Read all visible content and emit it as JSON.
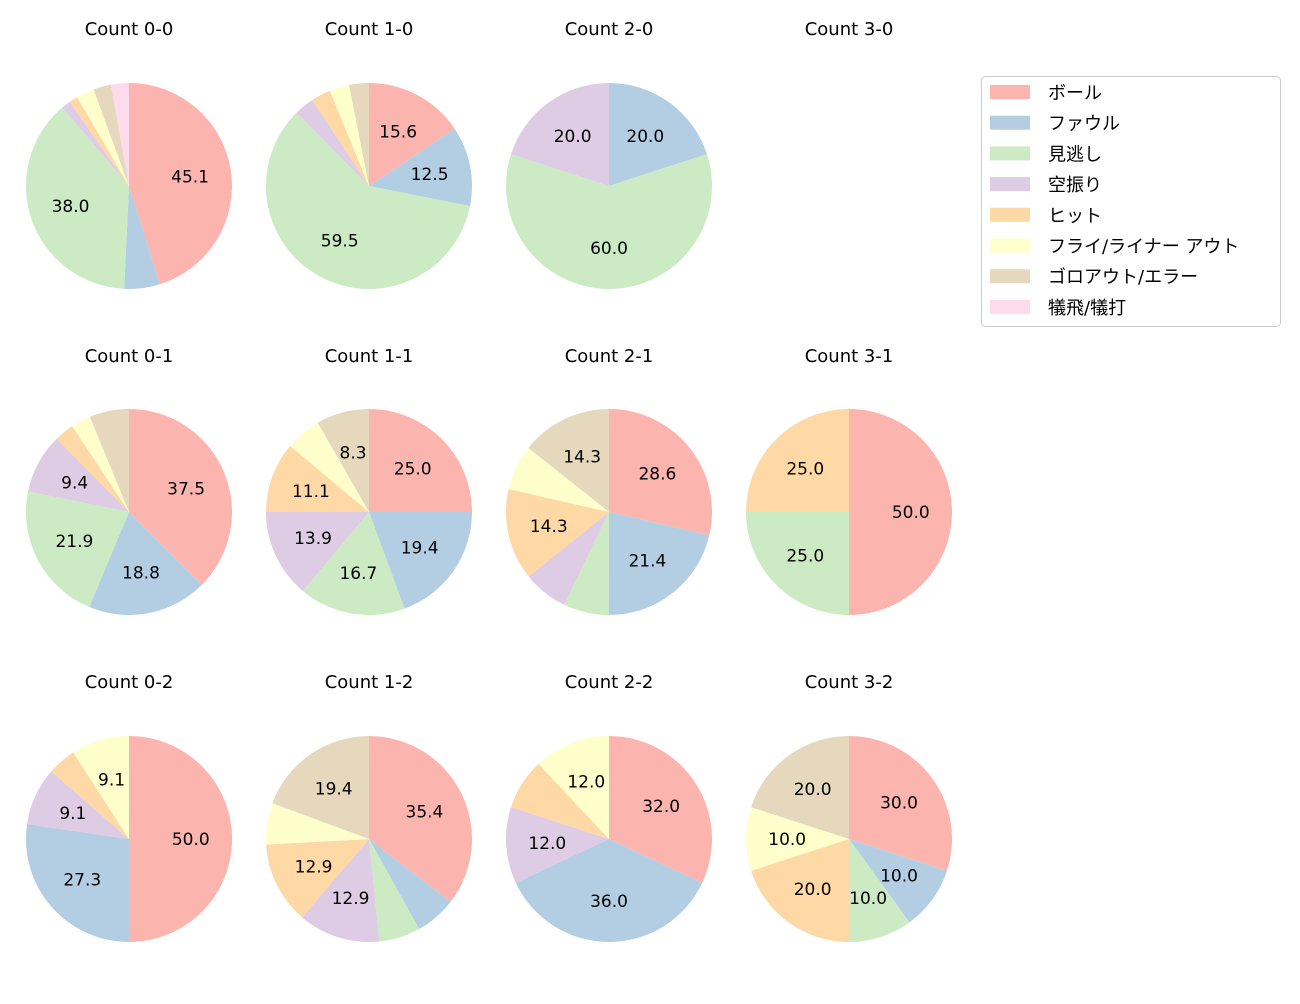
{
  "chart_data": {
    "type": "pie",
    "start_angle": 90,
    "direction": "clockwise",
    "label_format": "percent, 1 decimal",
    "legend": {
      "placement": "top-right",
      "entries": [
        "ボール",
        "ファウル",
        "見逃し",
        "空振り",
        "ヒット",
        "フライ/ライナー アウト",
        "ゴロアウト/エラー",
        "犠飛/犠打"
      ]
    },
    "colors": [
      "#fbb4ae",
      "#b3cde3",
      "#ccebc5",
      "#decbe4",
      "#fed9a6",
      "#ffffcc",
      "#e5d8bd",
      "#fddaec"
    ],
    "charts": [
      {
        "title": "Count 0-0",
        "values": [
          45.1,
          5.6,
          38.0,
          1.4,
          1.4,
          2.8,
          2.8,
          2.8
        ]
      },
      {
        "title": "Count 1-0",
        "values": [
          15.6,
          12.5,
          59.4,
          3.1,
          3.1,
          3.1,
          3.1,
          0
        ]
      },
      {
        "title": "Count 2-0",
        "values": [
          0,
          20.0,
          60.0,
          20.0,
          0,
          0,
          0,
          0
        ]
      },
      {
        "title": "Count 3-0",
        "values": []
      },
      {
        "title": "Count 0-1",
        "values": [
          37.5,
          18.8,
          21.9,
          9.4,
          3.1,
          3.1,
          6.2,
          0
        ]
      },
      {
        "title": "Count 1-1",
        "values": [
          25.0,
          19.4,
          16.7,
          13.9,
          11.1,
          5.6,
          8.3,
          0
        ]
      },
      {
        "title": "Count 2-1",
        "values": [
          28.6,
          21.4,
          7.1,
          7.1,
          14.3,
          7.1,
          14.3,
          0
        ]
      },
      {
        "title": "Count 3-1",
        "values": [
          50.0,
          0,
          25.0,
          0,
          25.0,
          0,
          0,
          0
        ]
      },
      {
        "title": "Count 0-2",
        "values": [
          50.0,
          27.3,
          0,
          9.1,
          4.5,
          9.1,
          0,
          0
        ]
      },
      {
        "title": "Count 1-2",
        "values": [
          35.5,
          6.5,
          6.5,
          12.9,
          12.9,
          6.5,
          19.4,
          0
        ]
      },
      {
        "title": "Count 2-2",
        "values": [
          32.0,
          36.0,
          0,
          12.0,
          8.0,
          12.0,
          0,
          0
        ]
      },
      {
        "title": "Count 3-2",
        "values": [
          30.0,
          10.0,
          10.0,
          0,
          20.0,
          10.0,
          20.0,
          0
        ]
      }
    ]
  }
}
